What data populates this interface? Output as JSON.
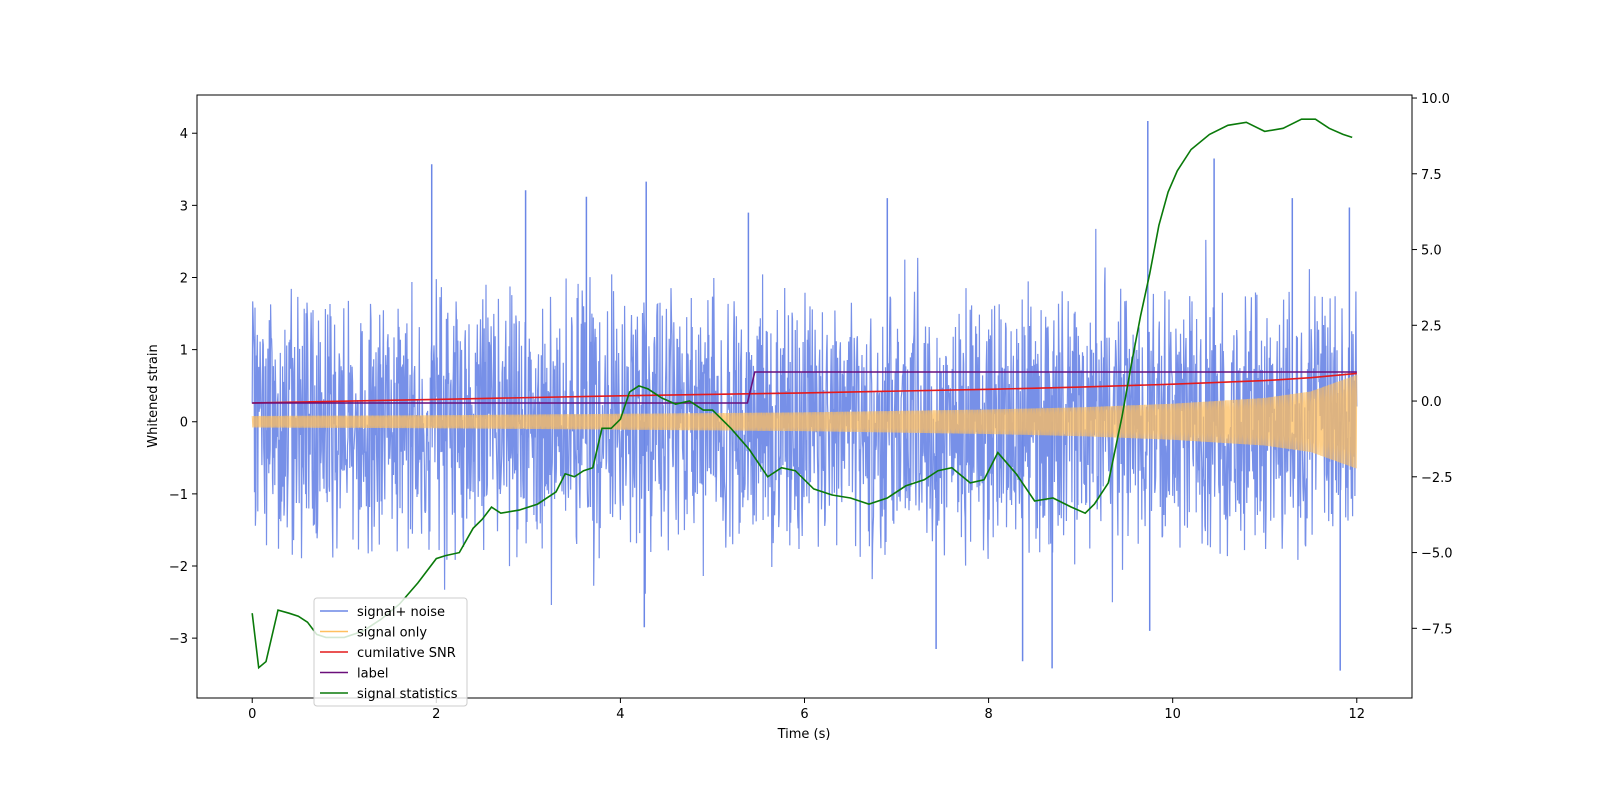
{
  "chart_data": {
    "type": "line",
    "title": "",
    "xlabel": "Time (s)",
    "ylabel": "Whitened strain",
    "y2label": "",
    "xlim": [
      -0.6,
      12.6
    ],
    "ylim": [
      -3.83,
      4.53
    ],
    "y2lim": [
      -9.8,
      10.1
    ],
    "x_ticks": [
      0,
      2,
      4,
      6,
      8,
      10,
      12
    ],
    "y_ticks": [
      -3,
      -2,
      -1,
      0,
      1,
      2,
      3,
      4
    ],
    "y2_ticks": [
      -7.5,
      -5.0,
      -2.5,
      0.0,
      2.5,
      5.0,
      7.5,
      10.0
    ],
    "x_tick_labels": [
      "0",
      "2",
      "4",
      "6",
      "8",
      "10",
      "12"
    ],
    "y_tick_labels": [
      "−3",
      "−2",
      "−1",
      "0",
      "1",
      "2",
      "3",
      "4"
    ],
    "y2_tick_labels": [
      "−7.5",
      "−5.0",
      "−2.5",
      "0.0",
      "2.5",
      "5.0",
      "7.5",
      "10.0"
    ],
    "legend_position": "lower-left",
    "grid": false,
    "series": [
      {
        "name": "signal+ noise",
        "color": "#6b87e6",
        "axis": "left",
        "kind": "noise-band",
        "x_range": [
          0,
          12
        ],
        "typical_amplitude": 1.6,
        "max": 4.17,
        "min": -3.45,
        "spikes": [
          {
            "x": 1.95,
            "y": 3.57
          },
          {
            "x": 2.97,
            "y": 3.21
          },
          {
            "x": 3.63,
            "y": 3.12
          },
          {
            "x": 4.28,
            "y": 3.33
          },
          {
            "x": 5.39,
            "y": 2.9
          },
          {
            "x": 6.9,
            "y": 3.1
          },
          {
            "x": 9.73,
            "y": 4.17
          },
          {
            "x": 10.45,
            "y": 3.65
          },
          {
            "x": 11.3,
            "y": 3.1
          },
          {
            "x": 11.92,
            "y": 2.97
          },
          {
            "x": 4.26,
            "y": -2.85
          },
          {
            "x": 7.43,
            "y": -3.15
          },
          {
            "x": 8.37,
            "y": -3.32
          },
          {
            "x": 8.69,
            "y": -3.42
          },
          {
            "x": 9.75,
            "y": -2.9
          },
          {
            "x": 11.82,
            "y": -3.45
          }
        ]
      },
      {
        "name": "signal only",
        "color": "#ffbf5f",
        "axis": "left",
        "kind": "envelope",
        "x": [
          0,
          2,
          4,
          6,
          8,
          9,
          10,
          11,
          11.5,
          12
        ],
        "envelope": [
          0.08,
          0.09,
          0.11,
          0.13,
          0.17,
          0.2,
          0.25,
          0.33,
          0.42,
          0.65
        ]
      },
      {
        "name": "cumilative SNR",
        "color": "#e41a1c",
        "axis": "left",
        "kind": "line",
        "x": [
          0,
          2,
          4,
          6,
          8,
          9,
          10,
          11,
          11.5,
          12
        ],
        "y": [
          0.26,
          0.31,
          0.36,
          0.4,
          0.45,
          0.48,
          0.52,
          0.57,
          0.61,
          0.67
        ]
      },
      {
        "name": "label",
        "color": "#6a0f7a",
        "axis": "left",
        "kind": "line",
        "x": [
          0,
          5.38,
          5.46,
          12
        ],
        "y": [
          0.26,
          0.26,
          0.69,
          0.69
        ]
      },
      {
        "name": "signal statistics",
        "color": "#0a7a0a",
        "axis": "right",
        "kind": "line",
        "x": [
          0,
          0.07,
          0.15,
          0.28,
          0.4,
          0.5,
          0.6,
          0.7,
          0.8,
          1.0,
          1.2,
          1.4,
          1.6,
          1.8,
          2.0,
          2.1,
          2.25,
          2.4,
          2.5,
          2.6,
          2.7,
          2.9,
          3.1,
          3.3,
          3.4,
          3.5,
          3.6,
          3.7,
          3.8,
          3.9,
          4.0,
          4.1,
          4.2,
          4.3,
          4.45,
          4.6,
          4.75,
          4.9,
          5.0,
          5.2,
          5.4,
          5.6,
          5.75,
          5.9,
          6.1,
          6.3,
          6.5,
          6.7,
          6.9,
          7.1,
          7.3,
          7.45,
          7.6,
          7.8,
          7.95,
          8.1,
          8.3,
          8.5,
          8.7,
          8.9,
          9.05,
          9.15,
          9.3,
          9.45,
          9.55,
          9.65,
          9.75,
          9.85,
          9.95,
          10.05,
          10.2,
          10.4,
          10.6,
          10.8,
          11.0,
          11.2,
          11.4,
          11.55,
          11.7,
          11.85,
          11.95
        ],
        "y": [
          -7.0,
          -8.8,
          -8.6,
          -6.9,
          -7.0,
          -7.1,
          -7.3,
          -7.7,
          -7.8,
          -7.8,
          -7.6,
          -7.2,
          -6.7,
          -6.0,
          -5.2,
          -5.1,
          -5.0,
          -4.2,
          -3.9,
          -3.5,
          -3.7,
          -3.6,
          -3.4,
          -3.0,
          -2.4,
          -2.5,
          -2.3,
          -2.2,
          -0.9,
          -0.9,
          -0.6,
          0.3,
          0.5,
          0.4,
          0.1,
          -0.1,
          0.0,
          -0.3,
          -0.3,
          -0.9,
          -1.6,
          -2.5,
          -2.2,
          -2.3,
          -2.9,
          -3.1,
          -3.2,
          -3.4,
          -3.2,
          -2.8,
          -2.6,
          -2.3,
          -2.2,
          -2.7,
          -2.6,
          -1.7,
          -2.4,
          -3.3,
          -3.2,
          -3.5,
          -3.7,
          -3.4,
          -2.7,
          -0.5,
          1.2,
          2.8,
          4.2,
          5.8,
          6.9,
          7.6,
          8.3,
          8.8,
          9.1,
          9.2,
          8.9,
          9.0,
          9.3,
          9.3,
          9.0,
          8.8,
          8.7
        ]
      }
    ]
  }
}
